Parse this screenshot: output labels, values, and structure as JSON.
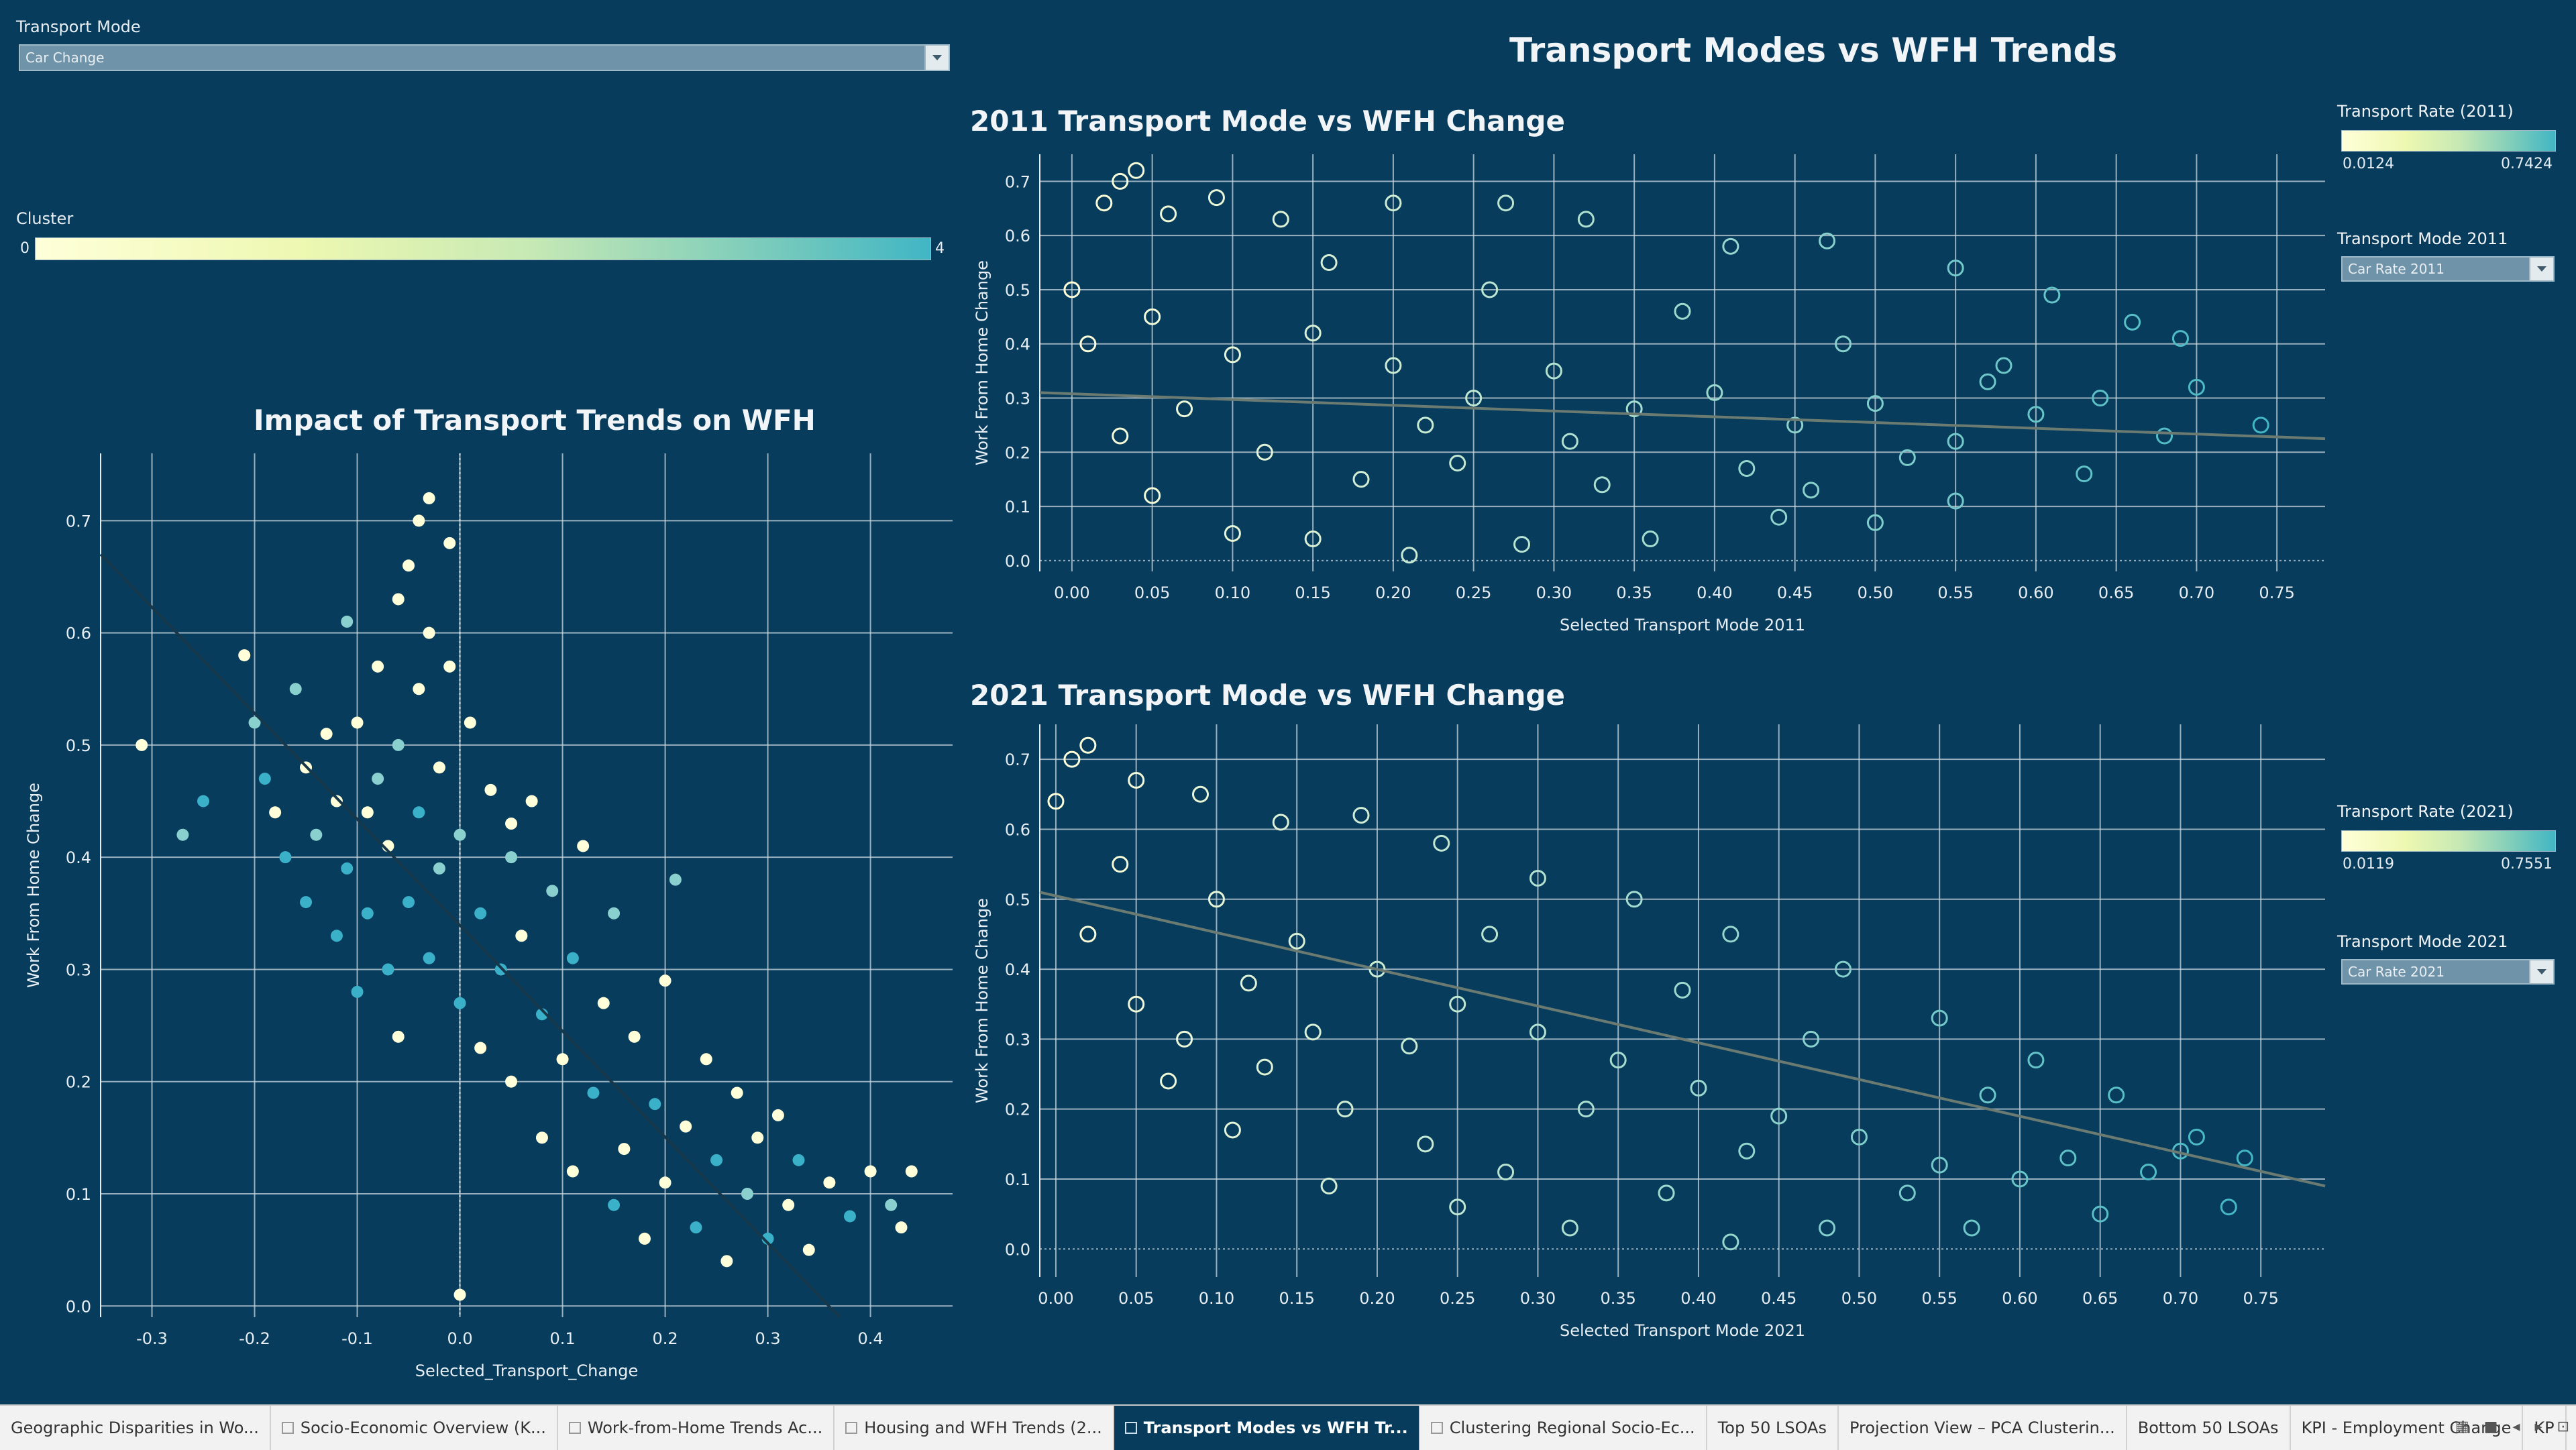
{
  "main_title": "Transport Modes vs WFH Trends",
  "filters": {
    "transport_mode": {
      "label": "Transport Mode",
      "value": "Car Change"
    },
    "cluster": {
      "label": "Cluster",
      "min": "0",
      "max": "4"
    },
    "rate_2011": {
      "label": "Transport Rate (2011)",
      "min": "0.0124",
      "max": "0.7424"
    },
    "mode_2011": {
      "label": "Transport Mode 2011",
      "value": "Car Rate 2011"
    },
    "rate_2021": {
      "label": "Transport Rate (2021)",
      "min": "0.0119",
      "max": "0.7551"
    },
    "mode_2021": {
      "label": "Transport Mode 2021",
      "value": "Car Rate 2021"
    }
  },
  "colors": {
    "background": "#083c5c",
    "scale_low": "#ffffd9",
    "scale_high": "#41b6c4",
    "cluster_alt": "#3bb0c9",
    "trend_line": "#6b7b72"
  },
  "chart_data": [
    {
      "type": "scatter",
      "title": "Impact of Transport Trends on WFH",
      "xlabel": "Selected_Transport_Change",
      "ylabel": "Work From Home Change",
      "xlim": [
        -0.35,
        0.48
      ],
      "ylim": [
        -0.01,
        0.76
      ],
      "xticks": [
        "-0.3",
        "-0.2",
        "-0.1",
        "0.0",
        "0.1",
        "0.2",
        "0.3",
        "0.4"
      ],
      "xtick_values": [
        -0.3,
        -0.2,
        -0.1,
        0.0,
        0.1,
        0.2,
        0.3,
        0.4
      ],
      "yticks": [
        "0.0",
        "0.1",
        "0.2",
        "0.3",
        "0.4",
        "0.5",
        "0.6",
        "0.7"
      ],
      "ytick_values": [
        0.0,
        0.1,
        0.2,
        0.3,
        0.4,
        0.5,
        0.6,
        0.7
      ],
      "zero_line_x": 0.0,
      "color_by": "Cluster",
      "trend_line": {
        "x1": -0.35,
        "y1": 0.67,
        "x2": 0.37,
        "y2": -0.01
      },
      "points": [
        [
          -0.31,
          0.5,
          0
        ],
        [
          -0.27,
          0.42,
          1
        ],
        [
          -0.25,
          0.45,
          3
        ],
        [
          -0.21,
          0.58,
          0
        ],
        [
          -0.2,
          0.52,
          1
        ],
        [
          -0.19,
          0.47,
          4
        ],
        [
          -0.18,
          0.44,
          0
        ],
        [
          -0.17,
          0.4,
          3
        ],
        [
          -0.16,
          0.55,
          1
        ],
        [
          -0.15,
          0.36,
          4
        ],
        [
          -0.15,
          0.48,
          0
        ],
        [
          -0.14,
          0.42,
          1
        ],
        [
          -0.13,
          0.51,
          0
        ],
        [
          -0.12,
          0.33,
          3
        ],
        [
          -0.12,
          0.45,
          0
        ],
        [
          -0.11,
          0.61,
          1
        ],
        [
          -0.11,
          0.39,
          4
        ],
        [
          -0.1,
          0.52,
          0
        ],
        [
          -0.1,
          0.28,
          3
        ],
        [
          -0.09,
          0.44,
          0
        ],
        [
          -0.09,
          0.35,
          4
        ],
        [
          -0.08,
          0.57,
          0
        ],
        [
          -0.08,
          0.47,
          1
        ],
        [
          -0.07,
          0.3,
          3
        ],
        [
          -0.07,
          0.41,
          0
        ],
        [
          -0.06,
          0.63,
          0
        ],
        [
          -0.06,
          0.5,
          1
        ],
        [
          -0.06,
          0.24,
          0
        ],
        [
          -0.05,
          0.36,
          4
        ],
        [
          -0.05,
          0.66,
          0
        ],
        [
          -0.04,
          0.55,
          0
        ],
        [
          -0.04,
          0.44,
          3
        ],
        [
          -0.04,
          0.7,
          0
        ],
        [
          -0.03,
          0.72,
          0
        ],
        [
          -0.03,
          0.6,
          0
        ],
        [
          -0.03,
          0.31,
          4
        ],
        [
          -0.02,
          0.48,
          0
        ],
        [
          -0.02,
          0.39,
          1
        ],
        [
          -0.01,
          0.68,
          0
        ],
        [
          -0.01,
          0.57,
          0
        ],
        [
          0.0,
          0.42,
          1
        ],
        [
          0.0,
          0.27,
          4
        ],
        [
          0.01,
          0.52,
          0
        ],
        [
          0.02,
          0.35,
          4
        ],
        [
          0.02,
          0.23,
          0
        ],
        [
          0.03,
          0.46,
          0
        ],
        [
          0.04,
          0.3,
          3
        ],
        [
          0.05,
          0.4,
          1
        ],
        [
          0.05,
          0.2,
          0
        ],
        [
          0.06,
          0.33,
          0
        ],
        [
          0.07,
          0.45,
          0
        ],
        [
          0.08,
          0.26,
          4
        ],
        [
          0.08,
          0.15,
          0
        ],
        [
          0.09,
          0.37,
          1
        ],
        [
          0.1,
          0.22,
          0
        ],
        [
          0.11,
          0.31,
          4
        ],
        [
          0.11,
          0.12,
          0
        ],
        [
          0.12,
          0.41,
          0
        ],
        [
          0.13,
          0.19,
          3
        ],
        [
          0.14,
          0.27,
          0
        ],
        [
          0.15,
          0.09,
          4
        ],
        [
          0.15,
          0.35,
          1
        ],
        [
          0.16,
          0.14,
          0
        ],
        [
          0.17,
          0.24,
          0
        ],
        [
          0.18,
          0.06,
          0
        ],
        [
          0.19,
          0.18,
          4
        ],
        [
          0.2,
          0.29,
          0
        ],
        [
          0.2,
          0.11,
          0
        ],
        [
          0.21,
          0.38,
          1
        ],
        [
          0.22,
          0.16,
          0
        ],
        [
          0.23,
          0.07,
          3
        ],
        [
          0.24,
          0.22,
          0
        ],
        [
          0.25,
          0.13,
          4
        ],
        [
          0.26,
          0.04,
          0
        ],
        [
          0.27,
          0.19,
          0
        ],
        [
          0.28,
          0.1,
          1
        ],
        [
          0.29,
          0.15,
          0
        ],
        [
          0.3,
          0.06,
          4
        ],
        [
          0.31,
          0.17,
          0
        ],
        [
          0.32,
          0.09,
          0
        ],
        [
          0.33,
          0.13,
          3
        ],
        [
          0.34,
          0.05,
          0
        ],
        [
          0.36,
          0.11,
          0
        ],
        [
          0.38,
          0.08,
          4
        ],
        [
          0.4,
          0.12,
          0
        ],
        [
          0.42,
          0.09,
          1
        ],
        [
          0.44,
          0.12,
          0
        ],
        [
          0.43,
          0.07,
          0
        ],
        [
          0.0,
          0.01,
          0
        ],
        [
          0.05,
          0.43,
          0
        ]
      ]
    },
    {
      "type": "scatter",
      "title": "2011 Transport Mode vs WFH Change",
      "xlabel": "Selected Transport Mode 2011",
      "ylabel": "Work From Home Change",
      "xlim": [
        -0.02,
        0.78
      ],
      "ylim": [
        -0.02,
        0.75
      ],
      "xticks": [
        "0.00",
        "0.05",
        "0.10",
        "0.15",
        "0.20",
        "0.25",
        "0.30",
        "0.35",
        "0.40",
        "0.45",
        "0.50",
        "0.55",
        "0.60",
        "0.65",
        "0.70",
        "0.75"
      ],
      "xtick_values": [
        0.0,
        0.05,
        0.1,
        0.15,
        0.2,
        0.25,
        0.3,
        0.35,
        0.4,
        0.45,
        0.5,
        0.55,
        0.6,
        0.65,
        0.7,
        0.75
      ],
      "yticks": [
        "0.0",
        "0.1",
        "0.2",
        "0.3",
        "0.4",
        "0.5",
        "0.6",
        "0.7"
      ],
      "ytick_values": [
        0.0,
        0.1,
        0.2,
        0.3,
        0.4,
        0.5,
        0.6,
        0.7
      ],
      "color_by": "Transport Rate (2011)",
      "trend_line": {
        "x1": -0.02,
        "y1": 0.31,
        "x2": 0.78,
        "y2": 0.225
      },
      "points": [
        [
          0.02,
          0.66
        ],
        [
          0.03,
          0.7
        ],
        [
          0.04,
          0.72
        ],
        [
          0.06,
          0.64
        ],
        [
          0.09,
          0.67
        ],
        [
          0.13,
          0.63
        ],
        [
          0.2,
          0.66
        ],
        [
          0.27,
          0.66
        ],
        [
          0.32,
          0.63
        ],
        [
          0.41,
          0.58
        ],
        [
          0.47,
          0.59
        ],
        [
          0.55,
          0.54
        ],
        [
          0.61,
          0.49
        ],
        [
          0.66,
          0.44
        ],
        [
          0.69,
          0.41
        ],
        [
          0.74,
          0.25
        ],
        [
          0.7,
          0.32
        ],
        [
          0.68,
          0.23
        ],
        [
          0.63,
          0.16
        ],
        [
          0.55,
          0.11
        ],
        [
          0.5,
          0.07
        ],
        [
          0.44,
          0.08
        ],
        [
          0.36,
          0.04
        ],
        [
          0.28,
          0.03
        ],
        [
          0.21,
          0.01
        ],
        [
          0.15,
          0.04
        ],
        [
          0.1,
          0.05
        ],
        [
          0.05,
          0.12
        ],
        [
          0.03,
          0.23
        ],
        [
          0.01,
          0.4
        ],
        [
          0.0,
          0.5
        ],
        [
          0.05,
          0.45
        ],
        [
          0.1,
          0.38
        ],
        [
          0.15,
          0.42
        ],
        [
          0.2,
          0.36
        ],
        [
          0.25,
          0.3
        ],
        [
          0.3,
          0.35
        ],
        [
          0.35,
          0.28
        ],
        [
          0.4,
          0.31
        ],
        [
          0.45,
          0.25
        ],
        [
          0.5,
          0.29
        ],
        [
          0.55,
          0.22
        ],
        [
          0.6,
          0.27
        ],
        [
          0.12,
          0.2
        ],
        [
          0.18,
          0.15
        ],
        [
          0.24,
          0.18
        ],
        [
          0.33,
          0.14
        ],
        [
          0.42,
          0.17
        ],
        [
          0.52,
          0.19
        ],
        [
          0.07,
          0.28
        ],
        [
          0.16,
          0.55
        ],
        [
          0.26,
          0.5
        ],
        [
          0.38,
          0.46
        ],
        [
          0.48,
          0.4
        ],
        [
          0.58,
          0.36
        ],
        [
          0.64,
          0.3
        ],
        [
          0.22,
          0.25
        ],
        [
          0.31,
          0.22
        ],
        [
          0.46,
          0.13
        ],
        [
          0.57,
          0.33
        ]
      ]
    },
    {
      "type": "scatter",
      "title": "2021 Transport Mode vs WFH Change",
      "xlabel": "Selected Transport Mode 2021",
      "ylabel": "Work From Home Change",
      "xlim": [
        -0.01,
        0.79
      ],
      "ylim": [
        -0.04,
        0.75
      ],
      "xticks": [
        "0.00",
        "0.05",
        "0.10",
        "0.15",
        "0.20",
        "0.25",
        "0.30",
        "0.35",
        "0.40",
        "0.45",
        "0.50",
        "0.55",
        "0.60",
        "0.65",
        "0.70",
        "0.75"
      ],
      "xtick_values": [
        0.0,
        0.05,
        0.1,
        0.15,
        0.2,
        0.25,
        0.3,
        0.35,
        0.4,
        0.45,
        0.5,
        0.55,
        0.6,
        0.65,
        0.7,
        0.75
      ],
      "yticks": [
        "0.0",
        "0.1",
        "0.2",
        "0.3",
        "0.4",
        "0.5",
        "0.6",
        "0.7"
      ],
      "ytick_values": [
        0.0,
        0.1,
        0.2,
        0.3,
        0.4,
        0.5,
        0.6,
        0.7
      ],
      "color_by": "Transport Rate (2021)",
      "trend_line": {
        "x1": -0.01,
        "y1": 0.51,
        "x2": 0.79,
        "y2": 0.09
      },
      "points": [
        [
          0.0,
          0.64
        ],
        [
          0.01,
          0.7
        ],
        [
          0.02,
          0.72
        ],
        [
          0.05,
          0.67
        ],
        [
          0.09,
          0.65
        ],
        [
          0.14,
          0.61
        ],
        [
          0.19,
          0.62
        ],
        [
          0.24,
          0.58
        ],
        [
          0.3,
          0.53
        ],
        [
          0.36,
          0.5
        ],
        [
          0.42,
          0.45
        ],
        [
          0.49,
          0.4
        ],
        [
          0.55,
          0.33
        ],
        [
          0.61,
          0.27
        ],
        [
          0.66,
          0.22
        ],
        [
          0.71,
          0.16
        ],
        [
          0.74,
          0.13
        ],
        [
          0.73,
          0.06
        ],
        [
          0.65,
          0.05
        ],
        [
          0.57,
          0.03
        ],
        [
          0.48,
          0.03
        ],
        [
          0.42,
          0.01
        ],
        [
          0.32,
          0.03
        ],
        [
          0.25,
          0.06
        ],
        [
          0.17,
          0.09
        ],
        [
          0.11,
          0.17
        ],
        [
          0.05,
          0.35
        ],
        [
          0.02,
          0.45
        ],
        [
          0.04,
          0.55
        ],
        [
          0.1,
          0.5
        ],
        [
          0.15,
          0.44
        ],
        [
          0.2,
          0.4
        ],
        [
          0.25,
          0.35
        ],
        [
          0.3,
          0.31
        ],
        [
          0.35,
          0.27
        ],
        [
          0.4,
          0.23
        ],
        [
          0.45,
          0.19
        ],
        [
          0.5,
          0.16
        ],
        [
          0.55,
          0.12
        ],
        [
          0.6,
          0.1
        ],
        [
          0.08,
          0.3
        ],
        [
          0.13,
          0.26
        ],
        [
          0.18,
          0.2
        ],
        [
          0.23,
          0.15
        ],
        [
          0.28,
          0.11
        ],
        [
          0.38,
          0.08
        ],
        [
          0.12,
          0.38
        ],
        [
          0.22,
          0.29
        ],
        [
          0.33,
          0.2
        ],
        [
          0.43,
          0.14
        ],
        [
          0.53,
          0.08
        ],
        [
          0.63,
          0.13
        ],
        [
          0.68,
          0.11
        ],
        [
          0.07,
          0.24
        ],
        [
          0.27,
          0.45
        ],
        [
          0.39,
          0.37
        ],
        [
          0.47,
          0.3
        ],
        [
          0.58,
          0.22
        ],
        [
          0.7,
          0.14
        ],
        [
          0.16,
          0.31
        ]
      ]
    }
  ],
  "tabs": [
    {
      "label": "Geographic Disparities in Wo...",
      "active": false
    },
    {
      "label": "Socio-Economic Overview (K...",
      "active": false
    },
    {
      "label": "Work-from-Home Trends Ac...",
      "active": false
    },
    {
      "label": "Housing and WFH Trends (2...",
      "active": false
    },
    {
      "label": "Transport Modes vs WFH Tr...",
      "active": true
    },
    {
      "label": "Clustering Regional Socio-Ec...",
      "active": false
    },
    {
      "label": "Top 50 LSOAs",
      "active": false
    },
    {
      "label": "Projection View – PCA Clusterin...",
      "active": false
    },
    {
      "label": "Bottom 50 LSOAs",
      "active": false
    },
    {
      "label": "KPI - Employment Change",
      "active": false
    },
    {
      "label": "KP",
      "active": false
    }
  ]
}
